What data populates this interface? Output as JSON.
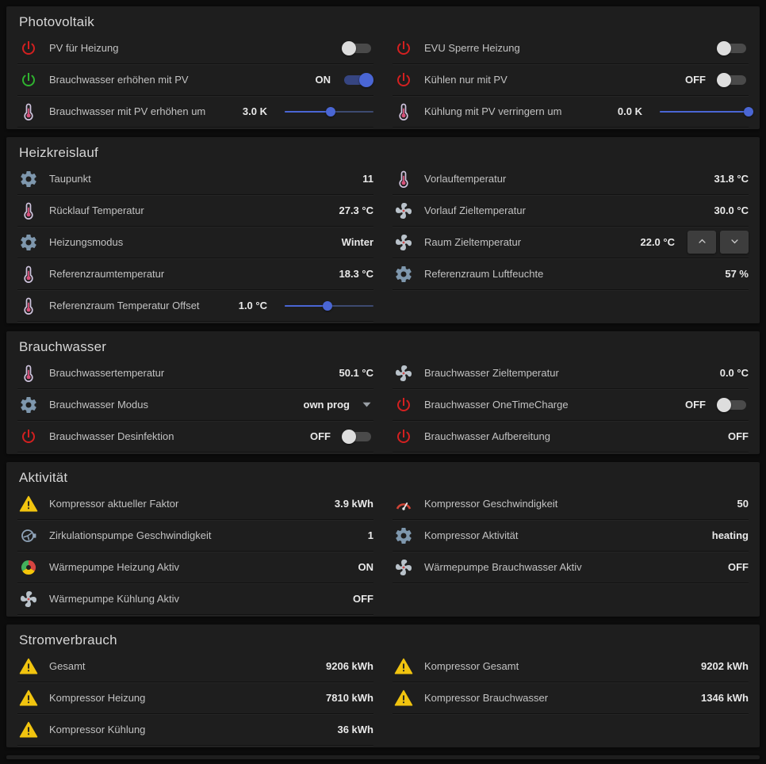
{
  "colors": {
    "accent": "#4a66d4",
    "power_red": "#d32020",
    "power_green": "#2fb32f",
    "gear_blue": "#7e97ad",
    "warning_yellow": "#f1c40f"
  },
  "sections": [
    {
      "title": "Photovoltaik",
      "columns": [
        {
          "rows": [
            {
              "icon": "power-red-icon",
              "label": "PV für Heizung",
              "value": "",
              "control": {
                "type": "toggle",
                "on": false
              }
            },
            {
              "icon": "power-green-icon",
              "label": "Brauchwasser erhöhen mit PV",
              "value": "ON",
              "control": {
                "type": "toggle",
                "on": true
              }
            },
            {
              "icon": "thermometer-icon",
              "label": "Brauchwasser mit PV erhöhen um",
              "value": "3.0 K",
              "control": {
                "type": "slider",
                "pct": 52
              }
            }
          ]
        },
        {
          "rows": [
            {
              "icon": "power-red-icon",
              "label": "EVU Sperre Heizung",
              "value": "",
              "control": {
                "type": "toggle",
                "on": false
              }
            },
            {
              "icon": "power-red-icon",
              "label": "Kühlen nur mit PV",
              "value": "OFF",
              "control": {
                "type": "toggle",
                "on": false
              }
            },
            {
              "icon": "thermometer-icon",
              "label": "Kühlung mit PV verringern um",
              "value": "0.0 K",
              "control": {
                "type": "slider",
                "pct": 100
              }
            }
          ]
        }
      ]
    },
    {
      "title": "Heizkreislauf",
      "columns": [
        {
          "rows": [
            {
              "icon": "gear-icon",
              "label": "Taupunkt",
              "value": "11"
            },
            {
              "icon": "thermometer-icon",
              "label": "Rücklauf Temperatur",
              "value": "27.3 °C"
            },
            {
              "icon": "gear-icon",
              "label": "Heizungsmodus",
              "value": "Winter"
            },
            {
              "icon": "thermometer-icon",
              "label": "Referenzraumtemperatur",
              "value": "18.3 °C"
            },
            {
              "icon": "thermometer-icon",
              "label": "Referenzraum Temperatur Offset",
              "value": "1.0 °C",
              "control": {
                "type": "slider",
                "pct": 48
              }
            }
          ]
        },
        {
          "rows": [
            {
              "icon": "thermometer-icon",
              "label": "Vorlauftemperatur",
              "value": "31.8 °C"
            },
            {
              "icon": "fan-icon",
              "label": "Vorlauf Zieltemperatur",
              "value": "30.0 °C"
            },
            {
              "icon": "fan-icon",
              "label": "Raum Zieltemperatur",
              "value": "22.0 °C",
              "control": {
                "type": "stepper"
              }
            },
            {
              "icon": "gear-icon",
              "label": "Referenzraum Luftfeuchte",
              "value": "57 %"
            }
          ]
        }
      ]
    },
    {
      "title": "Brauchwasser",
      "columns": [
        {
          "rows": [
            {
              "icon": "thermometer-icon",
              "label": "Brauchwassertemperatur",
              "value": "50.1 °C"
            },
            {
              "icon": "gear-icon",
              "label": "Brauchwasser Modus",
              "value": "own prog",
              "control": {
                "type": "dropdown"
              }
            },
            {
              "icon": "power-red-icon",
              "label": "Brauchwasser Desinfektion",
              "value": "OFF",
              "control": {
                "type": "toggle",
                "on": false
              }
            }
          ]
        },
        {
          "rows": [
            {
              "icon": "fan-icon",
              "label": "Brauchwasser Zieltemperatur",
              "value": "0.0 °C"
            },
            {
              "icon": "power-red-icon",
              "label": "Brauchwasser OneTimeCharge",
              "value": "OFF",
              "control": {
                "type": "toggle",
                "on": false
              }
            },
            {
              "icon": "power-red-icon",
              "label": "Brauchwasser Aufbereitung",
              "value": "OFF"
            }
          ]
        }
      ]
    },
    {
      "title": "Aktivität",
      "columns": [
        {
          "rows": [
            {
              "icon": "warning-icon",
              "label": "Kompressor aktueller Faktor",
              "value": "3.9 kWh"
            },
            {
              "icon": "pump-icon",
              "label": "Zirkulationspumpe Geschwindigkeit",
              "value": "1"
            },
            {
              "icon": "fan-color-icon",
              "label": "Wärmepumpe Heizung Aktiv",
              "value": "ON"
            },
            {
              "icon": "fan-icon",
              "label": "Wärmepumpe Kühlung Aktiv",
              "value": "OFF"
            }
          ]
        },
        {
          "rows": [
            {
              "icon": "gauge-icon",
              "label": "Kompressor Geschwindigkeit",
              "value": "50"
            },
            {
              "icon": "gear-icon",
              "label": "Kompressor Aktivität",
              "value": "heating"
            },
            {
              "icon": "fan-icon",
              "label": "Wärmepumpe Brauchwasser Aktiv",
              "value": "OFF"
            }
          ]
        }
      ]
    },
    {
      "title": "Stromverbrauch",
      "columns": [
        {
          "rows": [
            {
              "icon": "warning-icon",
              "label": "Gesamt",
              "value": "9206 kWh"
            },
            {
              "icon": "warning-icon",
              "label": "Kompressor Heizung",
              "value": "7810 kWh"
            },
            {
              "icon": "warning-icon",
              "label": "Kompressor Kühlung",
              "value": "36 kWh"
            }
          ]
        },
        {
          "rows": [
            {
              "icon": "warning-icon",
              "label": "Kompressor Gesamt",
              "value": "9202 kWh"
            },
            {
              "icon": "warning-icon",
              "label": "Kompressor Brauchwasser",
              "value": "1346 kWh"
            }
          ]
        }
      ]
    }
  ]
}
